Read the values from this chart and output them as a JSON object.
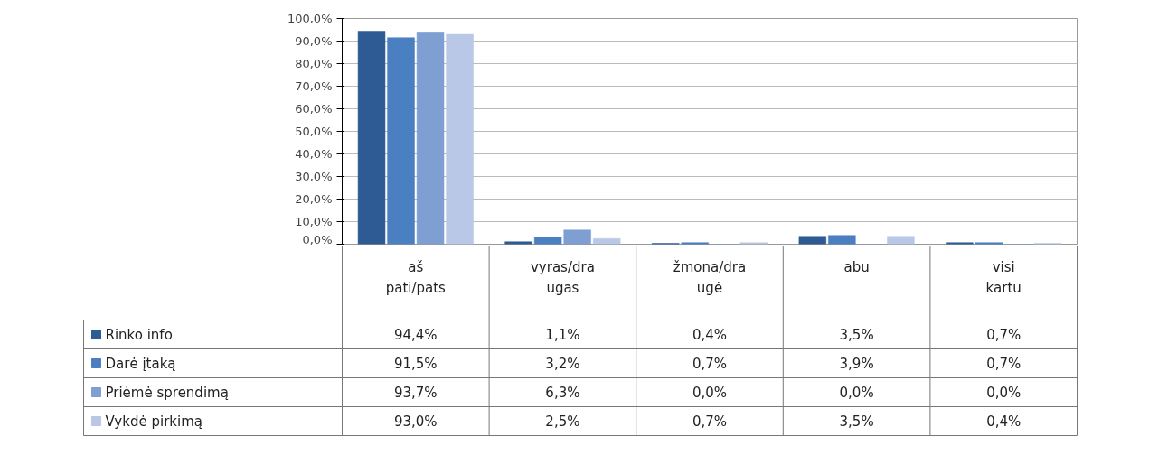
{
  "chart_data": {
    "type": "bar",
    "categories": [
      "aš pati/pats",
      "vyras/draugas",
      "žmona/draugė",
      "abu",
      "visi kartu"
    ],
    "series": [
      {
        "name": "Rinko info",
        "color": "#2f5b95",
        "values": [
          94.4,
          1.1,
          0.4,
          3.5,
          0.7
        ],
        "value_labels": [
          "94,4%",
          "1,1%",
          "0,4%",
          "3,5%",
          "0,7%"
        ]
      },
      {
        "name": "Darė įtaką",
        "color": "#4a7fc1",
        "values": [
          91.5,
          3.2,
          0.7,
          3.9,
          0.7
        ],
        "value_labels": [
          "91,5%",
          "3,2%",
          "0,7%",
          "3,9%",
          "0,7%"
        ]
      },
      {
        "name": "Priėmė sprendimą",
        "color": "#7f9fd3",
        "values": [
          93.7,
          6.3,
          0.0,
          0.0,
          0.0
        ],
        "value_labels": [
          "93,7%",
          "6,3%",
          "0,0%",
          "0,0%",
          "0,0%"
        ]
      },
      {
        "name": "Vykdė pirkimą",
        "color": "#b8c8e6",
        "values": [
          93.0,
          2.5,
          0.7,
          3.5,
          0.4
        ],
        "value_labels": [
          "93,0%",
          "2,5%",
          "0,7%",
          "3,5%",
          "0,4%"
        ]
      }
    ],
    "ylim": [
      0,
      100
    ],
    "yticks": [
      {
        "value": 0,
        "label": "0,0%"
      },
      {
        "value": 10,
        "label": "10,0%"
      },
      {
        "value": 20,
        "label": "20,0%"
      },
      {
        "value": 30,
        "label": "30,0%"
      },
      {
        "value": 40,
        "label": "40,0%"
      },
      {
        "value": 50,
        "label": "50,0%"
      },
      {
        "value": 60,
        "label": "60,0%"
      },
      {
        "value": 70,
        "label": "70,0%"
      },
      {
        "value": 80,
        "label": "80,0%"
      },
      {
        "value": 90,
        "label": "90,0%"
      },
      {
        "value": 100,
        "label": "100,0%"
      }
    ],
    "grid": "y",
    "legend": "bottom"
  }
}
